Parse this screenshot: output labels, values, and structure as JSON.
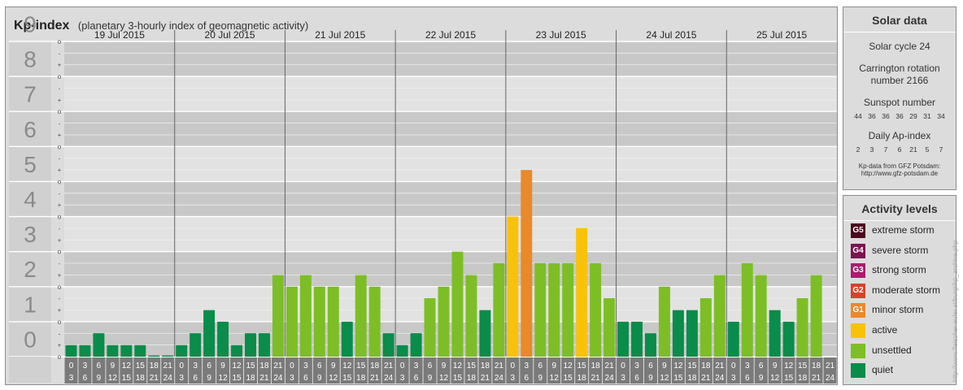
{
  "header": {
    "title": "Kp-index",
    "subtitle": "(planetary 3-hourly index of geomagnetic activity)"
  },
  "solar": {
    "heading": "Solar data",
    "cycle": "Solar cycle 24",
    "carrington_line1": "Carrington rotation",
    "carrington_line2": "number 2166",
    "sunspot_label": "Sunspot number",
    "sunspot_values": [
      "44",
      "36",
      "36",
      "36",
      "29",
      "31",
      "34"
    ],
    "ap_label": "Daily Ap-index",
    "ap_values": [
      "2",
      "3",
      "7",
      "6",
      "21",
      "5",
      "7"
    ],
    "source_line1": "Kp-data from GFZ Potsdam:",
    "source_line2": "http://www.gfz-potsdam.de"
  },
  "activity": {
    "heading": "Activity levels",
    "levels": [
      {
        "badge": "G5",
        "label": "extreme storm",
        "color": "#4b0a1e"
      },
      {
        "badge": "G4",
        "label": "severe storm",
        "color": "#7c1450"
      },
      {
        "badge": "G3",
        "label": "strong storm",
        "color": "#a81c6e"
      },
      {
        "badge": "G2",
        "label": "moderate storm",
        "color": "#d4442a"
      },
      {
        "badge": "G1",
        "label": "minor storm",
        "color": "#e9892a"
      },
      {
        "badge": "",
        "label": "active",
        "color": "#f9c20a"
      },
      {
        "badge": "",
        "label": "unsettled",
        "color": "#7dbe26"
      },
      {
        "badge": "",
        "label": "quiet",
        "color": "#0a8c4a"
      }
    ]
  },
  "watermark": "http://www.fleischer-euler.at/burgi/kp_archive.php",
  "chart_data": {
    "type": "bar",
    "ylim": [
      0,
      9
    ],
    "y_tick_labels": [
      "0",
      "1",
      "2",
      "3",
      "4",
      "5",
      "6",
      "7",
      "8",
      "9"
    ],
    "sub_tick_labels": [
      "o",
      "+",
      "-"
    ],
    "days": [
      "19 Jul 2015",
      "20 Jul 2015",
      "21 Jul 2015",
      "22 Jul 2015",
      "23 Jul 2015",
      "24 Jul 2015",
      "25 Jul 2015"
    ],
    "interval_start": [
      "0",
      "3",
      "6",
      "9",
      "12",
      "15",
      "18",
      "21"
    ],
    "interval_end": [
      "3",
      "6",
      "9",
      "12",
      "15",
      "18",
      "21",
      "24"
    ],
    "values": [
      0.33,
      0.33,
      0.67,
      0.33,
      0.33,
      0.33,
      0,
      0,
      0.33,
      0.67,
      1.33,
      1.0,
      0.33,
      0.67,
      0.67,
      2.33,
      2.0,
      2.33,
      2.0,
      2.0,
      1.0,
      2.33,
      2.0,
      0.67,
      0.33,
      0.67,
      1.67,
      2.0,
      3.0,
      2.33,
      1.33,
      2.67,
      4.0,
      5.33,
      2.67,
      2.67,
      2.67,
      3.67,
      2.67,
      1.67,
      1.0,
      1.0,
      0.67,
      2.0,
      1.33,
      1.33,
      1.67,
      2.33,
      1.0,
      2.67,
      2.33,
      1.33,
      1.0,
      1.67,
      2.33
    ],
    "colors": {
      "quiet": "#0a8c4a",
      "unsettled": "#7dbe26",
      "active": "#f9c20a",
      "minor_storm": "#e9892a"
    },
    "grid": true
  }
}
